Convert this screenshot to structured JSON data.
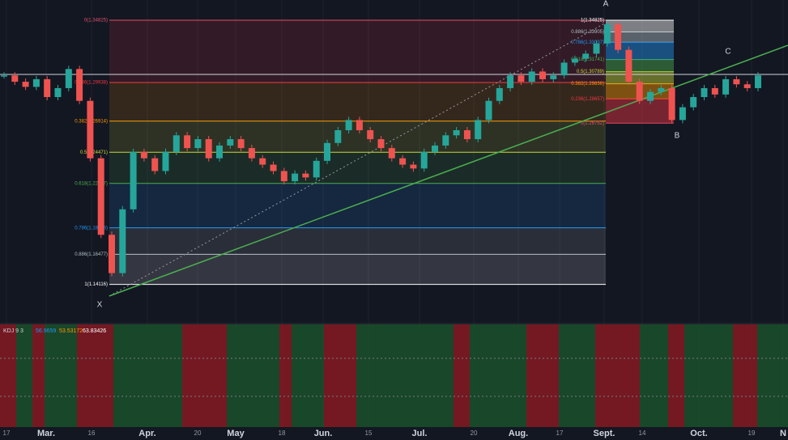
{
  "chart_data": {
    "type": "candlestick",
    "closes": [
      1.305,
      1.3,
      1.296,
      1.302,
      1.288,
      1.295,
      1.31,
      1.285,
      1.24,
      1.18,
      1.15,
      1.2,
      1.245,
      1.24,
      1.23,
      1.245,
      1.258,
      1.248,
      1.255,
      1.24,
      1.25,
      1.255,
      1.248,
      1.24,
      1.235,
      1.23,
      1.222,
      1.228,
      1.225,
      1.238,
      1.252,
      1.262,
      1.27,
      1.262,
      1.255,
      1.248,
      1.24,
      1.235,
      1.232,
      1.245,
      1.25,
      1.258,
      1.262,
      1.255,
      1.27,
      1.285,
      1.295,
      1.305,
      1.3,
      1.308,
      1.302,
      1.305,
      1.315,
      1.318,
      1.322,
      1.33,
      1.345,
      1.325,
      1.3,
      1.285,
      1.292,
      1.295,
      1.27,
      1.28,
      1.288,
      1.295,
      1.29,
      1.302,
      1.298,
      1.295,
      1.305
    ],
    "up_color": "#26a69a",
    "down_color": "#ef5350",
    "ylim": [
      1.11045,
      1.36409
    ],
    "fib_retracements": [
      {
        "levels": [
          {
            "ratio": 0,
            "value": 1.34825,
            "label": "0(1.34825)",
            "color": "#e0506a"
          },
          {
            "ratio": 0.236,
            "value": 1.29938,
            "label": "0.236(1.29938)",
            "color": "#f23645"
          },
          {
            "ratio": 0.382,
            "value": 1.26914,
            "label": "0.382(1.26914)",
            "color": "#ff9800"
          },
          {
            "ratio": 0.5,
            "value": 1.24471,
            "label": "0.5(1.24471)",
            "color": "#cddc39"
          },
          {
            "ratio": 0.618,
            "value": 1.22027,
            "label": "0.618(1.22027)",
            "color": "#4caf50"
          },
          {
            "ratio": 0.786,
            "value": 1.18548,
            "label": "0.786(1.18548)",
            "color": "#2196f3"
          },
          {
            "ratio": 0.886,
            "value": 1.16477,
            "label": "0.886(1.16477)",
            "color": "#b0bec5"
          },
          {
            "ratio": 1,
            "value": 1.14116,
            "label": "1(1.14116)",
            "color": "#ffffff"
          }
        ]
      },
      {
        "levels": [
          {
            "ratio": 0,
            "value": 1.26752,
            "label": "0(1.26752)",
            "color": "#e0506a"
          },
          {
            "ratio": 0.236,
            "value": 1.28657,
            "label": "0.236(1.28657)",
            "color": "#f23645"
          },
          {
            "ratio": 0.382,
            "value": 1.29836,
            "label": "0.382(1.29836)",
            "color": "#ff9800"
          },
          {
            "ratio": 0.5,
            "value": 1.30789,
            "label": "0.5(1.30789)",
            "color": "#cddc39"
          },
          {
            "ratio": 0.618,
            "value": 1.31741,
            "label": "0.618(1.31741)",
            "color": "#4caf50"
          },
          {
            "ratio": 0.786,
            "value": 1.33097,
            "label": "0.786(1.33097)",
            "color": "#2196f3"
          },
          {
            "ratio": 0.886,
            "value": 1.33905,
            "label": "0.886(1.33905)",
            "color": "#b0bec5"
          },
          {
            "ratio": 1,
            "value": 1.34825,
            "label": "1(1.34825)",
            "color": "#ffffff"
          }
        ]
      }
    ],
    "points": {
      "A": "A",
      "B": "B",
      "C": "C",
      "X": "X"
    },
    "kdj": {
      "title": "KDJ 9 3",
      "values": [
        56.9659,
        53.53172,
        63.83426
      ],
      "colors": [
        "#2196f3",
        "#ff9800",
        "#ffffff"
      ]
    },
    "x_labels": [
      "17",
      "Mar.",
      "16",
      "Apr.",
      "20",
      "May",
      "18",
      "Jun.",
      "15",
      "Jul.",
      "20",
      "Aug.",
      "17",
      "Sept.",
      "14",
      "Oct.",
      "19",
      "N"
    ]
  }
}
